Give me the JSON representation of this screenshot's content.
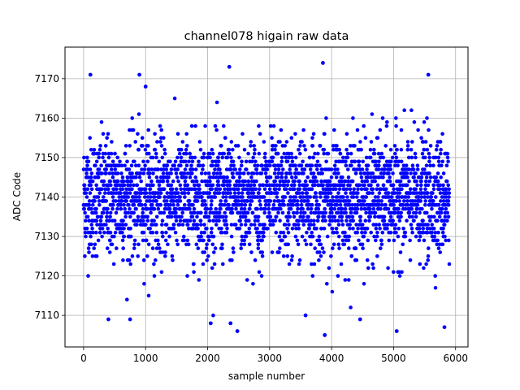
{
  "chart_data": {
    "type": "scatter",
    "title": "channel078 higain raw data",
    "xlabel": "sample number",
    "ylabel": "ADC Code",
    "xlim": [
      -300,
      6200
    ],
    "ylim": [
      7102,
      7178
    ],
    "xticks": [
      0,
      1000,
      2000,
      3000,
      4000,
      5000,
      6000
    ],
    "yticks": [
      7110,
      7120,
      7130,
      7140,
      7150,
      7160,
      7170
    ],
    "grid": true,
    "marker_color": "#0000ff",
    "n_samples": 5900,
    "baseline": {
      "center": 7140,
      "core_range": [
        7121,
        7153
      ],
      "scatter_range": [
        7105,
        7174
      ]
    },
    "notable_outliers": [
      {
        "x": 110,
        "y": 7171
      },
      {
        "x": 900,
        "y": 7171
      },
      {
        "x": 1000,
        "y": 7168
      },
      {
        "x": 2350,
        "y": 7173
      },
      {
        "x": 3860,
        "y": 7174
      },
      {
        "x": 5560,
        "y": 7171
      },
      {
        "x": 3890,
        "y": 7105
      },
      {
        "x": 5820,
        "y": 7107
      },
      {
        "x": 2480,
        "y": 7106
      },
      {
        "x": 5050,
        "y": 7106
      },
      {
        "x": 2050,
        "y": 7108
      },
      {
        "x": 2370,
        "y": 7108
      },
      {
        "x": 400,
        "y": 7109
      },
      {
        "x": 4460,
        "y": 7109
      },
      {
        "x": 3580,
        "y": 7110
      },
      {
        "x": 750,
        "y": 7109
      }
    ]
  }
}
